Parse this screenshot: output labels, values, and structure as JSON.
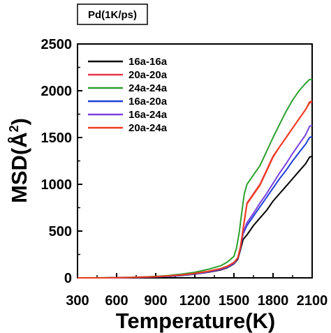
{
  "chart_data": {
    "type": "line",
    "title_box": "Pd(1K/ps)",
    "xlabel": "Temperature(K)",
    "ylabel_main": "MSD(",
    "ylabel_unit": "Å",
    "ylabel_sup": "2",
    "ylabel_close": ")",
    "xlim": [
      300,
      2100
    ],
    "ylim": [
      0,
      2500
    ],
    "xticks": [
      300,
      600,
      900,
      1200,
      1500,
      1800,
      2100
    ],
    "xtick_labels": [
      "300",
      "600",
      "900",
      "1200",
      "1500",
      "1800",
      "2100"
    ],
    "yticks": [
      0,
      500,
      1000,
      1500,
      2000,
      2500
    ],
    "ytick_labels": [
      "0",
      "500",
      "1000",
      "1500",
      "2000",
      "2500"
    ],
    "legend_position": "top-left",
    "grid": false,
    "series": [
      {
        "name": "16a-16a",
        "color": "#000000",
        "x": [
          300,
          500,
          700,
          800,
          900,
          1000,
          1100,
          1200,
          1300,
          1400,
          1450,
          1500,
          1530,
          1550,
          1570,
          1600,
          1650,
          1700,
          1750,
          1800,
          1850,
          1900,
          1950,
          2000,
          2050,
          2080,
          2100
        ],
        "y": [
          0,
          0,
          3,
          6,
          10,
          15,
          25,
          40,
          60,
          85,
          110,
          150,
          200,
          300,
          410,
          460,
          560,
          640,
          720,
          820,
          900,
          980,
          1060,
          1140,
          1220,
          1290,
          1300
        ]
      },
      {
        "name": "20a-20a",
        "color": "#e8344a",
        "x": [
          300,
          500,
          700,
          800,
          900,
          1000,
          1100,
          1200,
          1300,
          1400,
          1450,
          1500,
          1530,
          1550,
          1570,
          1600,
          1650,
          1700,
          1750,
          1800,
          1850,
          1900,
          1950,
          2000,
          2050,
          2080,
          2100
        ],
        "y": [
          0,
          0,
          4,
          8,
          12,
          18,
          30,
          45,
          65,
          95,
          120,
          160,
          210,
          320,
          520,
          800,
          900,
          1000,
          1150,
          1300,
          1400,
          1500,
          1600,
          1700,
          1800,
          1880,
          1890
        ]
      },
      {
        "name": "24a-24a",
        "color": "#2ca02c",
        "x": [
          300,
          500,
          700,
          800,
          900,
          1000,
          1100,
          1200,
          1300,
          1400,
          1450,
          1500,
          1520,
          1540,
          1560,
          1580,
          1600,
          1650,
          1700,
          1750,
          1800,
          1850,
          1900,
          1950,
          2000,
          2050,
          2080,
          2100
        ],
        "y": [
          0,
          2,
          6,
          10,
          16,
          25,
          40,
          60,
          90,
          130,
          170,
          230,
          320,
          480,
          700,
          900,
          1000,
          1100,
          1200,
          1350,
          1500,
          1640,
          1780,
          1900,
          2000,
          2080,
          2120,
          2120
        ]
      },
      {
        "name": "16a-20a",
        "color": "#1f3fd6",
        "x": [
          300,
          500,
          700,
          800,
          900,
          1000,
          1100,
          1200,
          1300,
          1400,
          1450,
          1500,
          1530,
          1550,
          1570,
          1600,
          1650,
          1700,
          1750,
          1800,
          1850,
          1900,
          1950,
          2000,
          2050,
          2080,
          2100
        ],
        "y": [
          0,
          0,
          3,
          7,
          11,
          16,
          27,
          42,
          62,
          90,
          115,
          155,
          210,
          320,
          470,
          560,
          660,
          760,
          860,
          960,
          1060,
          1150,
          1250,
          1340,
          1430,
          1500,
          1510
        ]
      },
      {
        "name": "16a-24a",
        "color": "#7b3fe0",
        "x": [
          300,
          500,
          700,
          800,
          900,
          1000,
          1100,
          1200,
          1300,
          1400,
          1450,
          1500,
          1530,
          1550,
          1570,
          1600,
          1650,
          1700,
          1750,
          1800,
          1850,
          1900,
          1950,
          2000,
          2050,
          2080,
          2100
        ],
        "y": [
          0,
          0,
          3,
          7,
          12,
          17,
          28,
          44,
          65,
          92,
          118,
          158,
          215,
          330,
          480,
          590,
          690,
          800,
          900,
          1010,
          1120,
          1220,
          1330,
          1430,
          1530,
          1620,
          1630
        ]
      },
      {
        "name": "20a-24a",
        "color": "#f03a1e",
        "x": [
          300,
          500,
          700,
          800,
          900,
          1000,
          1100,
          1200,
          1300,
          1400,
          1450,
          1500,
          1530,
          1550,
          1570,
          1600,
          1650,
          1700,
          1750,
          1800,
          1850,
          1900,
          1950,
          2000,
          2050,
          2080,
          2100
        ],
        "y": [
          0,
          0,
          4,
          8,
          13,
          20,
          32,
          48,
          70,
          100,
          125,
          165,
          215,
          330,
          520,
          790,
          890,
          990,
          1140,
          1290,
          1400,
          1500,
          1600,
          1700,
          1800,
          1870,
          1880
        ]
      }
    ]
  }
}
